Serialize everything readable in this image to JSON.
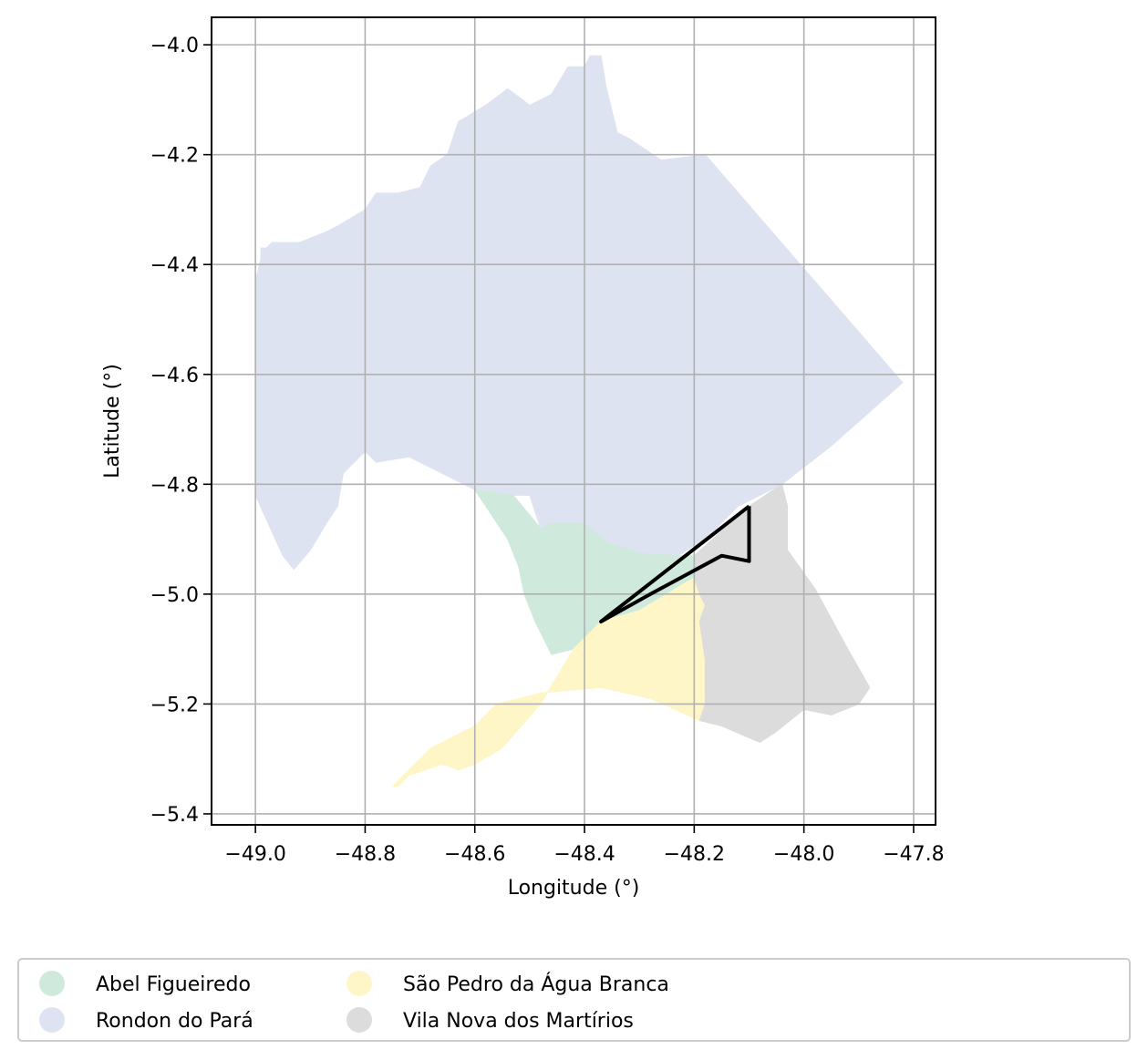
{
  "map": {
    "xlabel": "Longitude (°)",
    "ylabel": "Latitude (°)",
    "xlim": [
      -49.08,
      -47.76
    ],
    "ylim": [
      -5.42,
      -3.95
    ],
    "x_ticks": [
      {
        "value": -49.0,
        "label": "−49.0"
      },
      {
        "value": -48.8,
        "label": "−48.8"
      },
      {
        "value": -48.6,
        "label": "−48.6"
      },
      {
        "value": -48.4,
        "label": "−48.4"
      },
      {
        "value": -48.2,
        "label": "−48.2"
      },
      {
        "value": -48.0,
        "label": "−48.0"
      },
      {
        "value": -47.8,
        "label": "−47.8"
      }
    ],
    "y_ticks": [
      {
        "value": -4.0,
        "label": "−4.0"
      },
      {
        "value": -4.2,
        "label": "−4.2"
      },
      {
        "value": -4.4,
        "label": "−4.4"
      },
      {
        "value": -4.6,
        "label": "−4.6"
      },
      {
        "value": -4.8,
        "label": "−4.8"
      },
      {
        "value": -5.0,
        "label": "−5.0"
      },
      {
        "value": -5.2,
        "label": "−5.2"
      },
      {
        "value": -5.4,
        "label": "−5.4"
      }
    ],
    "grid": true,
    "regions": [
      {
        "name": "Rondon do Pará",
        "color": "#dee3f1",
        "outline": [
          [
            -48.98,
            -4.37
          ],
          [
            -48.97,
            -4.36
          ],
          [
            -48.92,
            -4.36
          ],
          [
            -48.87,
            -4.34
          ],
          [
            -48.85,
            -4.33
          ],
          [
            -48.8,
            -4.3
          ],
          [
            -48.78,
            -4.27
          ],
          [
            -48.74,
            -4.27
          ],
          [
            -48.7,
            -4.26
          ],
          [
            -48.68,
            -4.22
          ],
          [
            -48.65,
            -4.2
          ],
          [
            -48.63,
            -4.14
          ],
          [
            -48.58,
            -4.11
          ],
          [
            -48.54,
            -4.08
          ],
          [
            -48.5,
            -4.11
          ],
          [
            -48.46,
            -4.09
          ],
          [
            -48.43,
            -4.04
          ],
          [
            -48.4,
            -4.04
          ],
          [
            -48.39,
            -4.02
          ],
          [
            -48.37,
            -4.02
          ],
          [
            -48.36,
            -4.08
          ],
          [
            -48.34,
            -4.16
          ],
          [
            -48.32,
            -4.17
          ],
          [
            -48.26,
            -4.21
          ],
          [
            -48.18,
            -4.2
          ],
          [
            -48.05,
            -4.35
          ],
          [
            -47.82,
            -4.615
          ],
          [
            -47.95,
            -4.73
          ],
          [
            -48.04,
            -4.8
          ],
          [
            -48.12,
            -4.84
          ],
          [
            -48.18,
            -4.9
          ],
          [
            -48.23,
            -4.93
          ],
          [
            -48.3,
            -4.925
          ],
          [
            -48.36,
            -4.905
          ],
          [
            -48.4,
            -4.87
          ],
          [
            -48.43,
            -4.87
          ],
          [
            -48.46,
            -4.87
          ],
          [
            -48.48,
            -4.88
          ],
          [
            -48.5,
            -4.82
          ],
          [
            -48.53,
            -4.82
          ],
          [
            -48.6,
            -4.81
          ],
          [
            -48.68,
            -4.77
          ],
          [
            -48.72,
            -4.75
          ],
          [
            -48.78,
            -4.76
          ],
          [
            -48.8,
            -4.74
          ],
          [
            -48.84,
            -4.78
          ],
          [
            -48.85,
            -4.84
          ],
          [
            -48.87,
            -4.87
          ],
          [
            -48.9,
            -4.92
          ],
          [
            -48.93,
            -4.955
          ],
          [
            -48.95,
            -4.93
          ],
          [
            -49.0,
            -4.82
          ],
          [
            -49.0,
            -4.43
          ],
          [
            -48.99,
            -4.39
          ],
          [
            -48.99,
            -4.37
          ]
        ]
      },
      {
        "name": "Abel Figueiredo",
        "color": "#cfeadd",
        "outline": [
          [
            -48.6,
            -4.81
          ],
          [
            -48.53,
            -4.82
          ],
          [
            -48.48,
            -4.88
          ],
          [
            -48.46,
            -4.87
          ],
          [
            -48.4,
            -4.87
          ],
          [
            -48.36,
            -4.905
          ],
          [
            -48.3,
            -4.925
          ],
          [
            -48.23,
            -4.93
          ],
          [
            -48.2,
            -4.93
          ],
          [
            -48.2,
            -4.97
          ],
          [
            -48.3,
            -5.03
          ],
          [
            -48.37,
            -5.05
          ],
          [
            -48.42,
            -5.1
          ],
          [
            -48.46,
            -5.11
          ],
          [
            -48.49,
            -5.05
          ],
          [
            -48.51,
            -5.0
          ],
          [
            -48.52,
            -4.95
          ],
          [
            -48.54,
            -4.9
          ]
        ]
      },
      {
        "name": "São Pedro da Água Branca",
        "color": "#fff6c7",
        "outline": [
          [
            -48.2,
            -4.97
          ],
          [
            -48.19,
            -5.0
          ],
          [
            -48.18,
            -5.02
          ],
          [
            -48.19,
            -5.05
          ],
          [
            -48.18,
            -5.12
          ],
          [
            -48.18,
            -5.2
          ],
          [
            -48.19,
            -5.23
          ],
          [
            -48.28,
            -5.19
          ],
          [
            -48.37,
            -5.17
          ],
          [
            -48.48,
            -5.18
          ],
          [
            -48.56,
            -5.2
          ],
          [
            -48.6,
            -5.24
          ],
          [
            -48.68,
            -5.28
          ],
          [
            -48.75,
            -5.35
          ],
          [
            -48.74,
            -5.35
          ],
          [
            -48.72,
            -5.33
          ],
          [
            -48.69,
            -5.32
          ],
          [
            -48.66,
            -5.31
          ],
          [
            -48.63,
            -5.32
          ],
          [
            -48.6,
            -5.31
          ],
          [
            -48.55,
            -5.28
          ],
          [
            -48.48,
            -5.2
          ],
          [
            -48.42,
            -5.1
          ],
          [
            -48.37,
            -5.05
          ],
          [
            -48.3,
            -5.03
          ]
        ]
      },
      {
        "name": "Vila Nova dos Martírios",
        "color": "#dcdcdc",
        "outline": [
          [
            -48.04,
            -4.8
          ],
          [
            -48.1,
            -4.84
          ],
          [
            -48.2,
            -4.93
          ],
          [
            -48.2,
            -4.97
          ],
          [
            -48.19,
            -5.0
          ],
          [
            -48.18,
            -5.02
          ],
          [
            -48.19,
            -5.05
          ],
          [
            -48.18,
            -5.12
          ],
          [
            -48.18,
            -5.2
          ],
          [
            -48.19,
            -5.23
          ],
          [
            -48.15,
            -5.24
          ],
          [
            -48.08,
            -5.27
          ],
          [
            -48.05,
            -5.25
          ],
          [
            -48.0,
            -5.21
          ],
          [
            -47.95,
            -5.22
          ],
          [
            -47.9,
            -5.2
          ],
          [
            -47.88,
            -5.17
          ],
          [
            -47.92,
            -5.1
          ],
          [
            -47.98,
            -4.99
          ],
          [
            -48.03,
            -4.92
          ],
          [
            -48.03,
            -4.84
          ]
        ]
      }
    ],
    "highlight_outline": [
      [
        -48.1,
        -4.84
      ],
      [
        -48.1,
        -4.94
      ],
      [
        -48.15,
        -4.93
      ],
      [
        -48.28,
        -5.0
      ],
      [
        -48.37,
        -5.05
      ],
      [
        -48.1,
        -4.84
      ]
    ]
  },
  "legend": {
    "items": [
      {
        "label": "Abel Figueiredo",
        "color": "#cfeadd"
      },
      {
        "label": "Rondon do Pará",
        "color": "#dee3f1"
      },
      {
        "label": "São Pedro da Água Branca",
        "color": "#fff6c7"
      },
      {
        "label": "Vila Nova dos Martírios",
        "color": "#dcdcdc"
      }
    ]
  }
}
